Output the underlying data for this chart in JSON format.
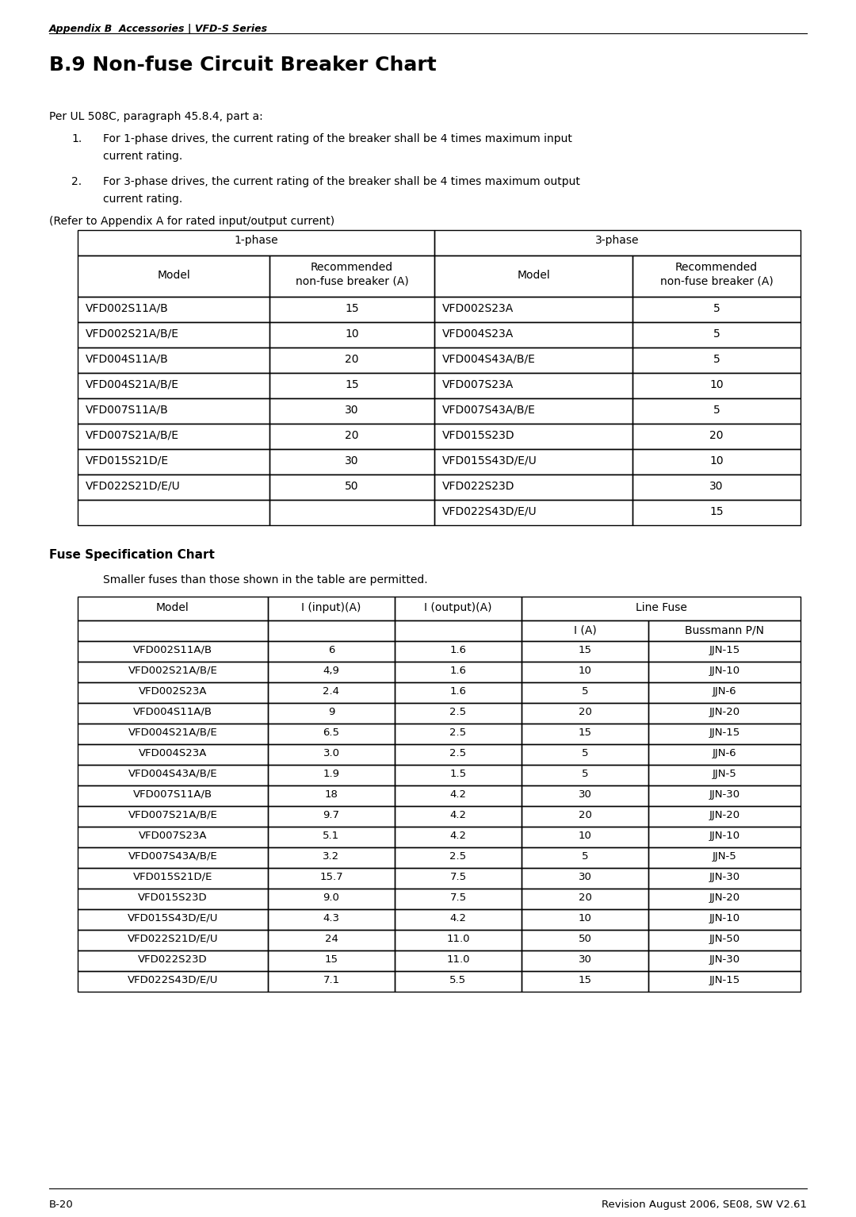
{
  "page_header": "Appendix B  Accessories | VFD-S Series",
  "section_title": "B.9 Non-fuse Circuit Breaker Chart",
  "intro_text": "Per UL 508C, paragraph 45.8.4, part a:",
  "point1_line1": "For 1-phase drives, the current rating of the breaker shall be 4 times maximum input",
  "point1_line2": "current rating.",
  "point2_line1": "For 3-phase drives, the current rating of the breaker shall be 4 times maximum output",
  "point2_line2": "current rating.",
  "refer_text": "(Refer to Appendix A for rated input/output current)",
  "breaker_table": {
    "phase1_models": [
      "VFD002S11A/B",
      "VFD002S21A/B/E",
      "VFD004S11A/B",
      "VFD004S21A/B/E",
      "VFD007S11A/B",
      "VFD007S21A/B/E",
      "VFD015S21D/E",
      "VFD022S21D/E/U"
    ],
    "phase1_breakers": [
      "15",
      "10",
      "20",
      "15",
      "30",
      "20",
      "30",
      "50"
    ],
    "phase3_models": [
      "VFD002S23A",
      "VFD004S23A",
      "VFD004S43A/B/E",
      "VFD007S23A",
      "VFD007S43A/B/E",
      "VFD015S23D",
      "VFD015S43D/E/U",
      "VFD022S23D",
      "VFD022S43D/E/U"
    ],
    "phase3_breakers": [
      "5",
      "5",
      "5",
      "10",
      "5",
      "20",
      "10",
      "30",
      "15"
    ]
  },
  "fuse_section_title": "Fuse Specification Chart",
  "fuse_intro": "Smaller fuses than those shown in the table are permitted.",
  "fuse_table": {
    "models": [
      "VFD002S11A/B",
      "VFD002S21A/B/E",
      "VFD002S23A",
      "VFD004S11A/B",
      "VFD004S21A/B/E",
      "VFD004S23A",
      "VFD004S43A/B/E",
      "VFD007S11A/B",
      "VFD007S21A/B/E",
      "VFD007S23A",
      "VFD007S43A/B/E",
      "VFD015S21D/E",
      "VFD015S23D",
      "VFD015S43D/E/U",
      "VFD022S21D/E/U",
      "VFD022S23D",
      "VFD022S43D/E/U"
    ],
    "i_input": [
      "6",
      "4,9",
      "2.4",
      "9",
      "6.5",
      "3.0",
      "1.9",
      "18",
      "9.7",
      "5.1",
      "3.2",
      "15.7",
      "9.0",
      "4.3",
      "24",
      "15",
      "7.1"
    ],
    "i_output": [
      "1.6",
      "1.6",
      "1.6",
      "2.5",
      "2.5",
      "2.5",
      "1.5",
      "4.2",
      "4.2",
      "4.2",
      "2.5",
      "7.5",
      "7.5",
      "4.2",
      "11.0",
      "11.0",
      "5.5"
    ],
    "i_A": [
      "15",
      "10",
      "5",
      "20",
      "15",
      "5",
      "5",
      "30",
      "20",
      "10",
      "5",
      "30",
      "20",
      "10",
      "50",
      "30",
      "15"
    ],
    "bussmann": [
      "JJN-15",
      "JJN-10",
      "JJN-6",
      "JJN-20",
      "JJN-15",
      "JJN-6",
      "JJN-5",
      "JJN-30",
      "JJN-20",
      "JJN-10",
      "JJN-5",
      "JJN-30",
      "JJN-20",
      "JJN-10",
      "JJN-50",
      "JJN-30",
      "JJN-15"
    ]
  },
  "footer_left": "B-20",
  "footer_right": "Revision August 2006, SE08, SW V2.61",
  "bg_color": "#ffffff",
  "text_color": "#000000"
}
